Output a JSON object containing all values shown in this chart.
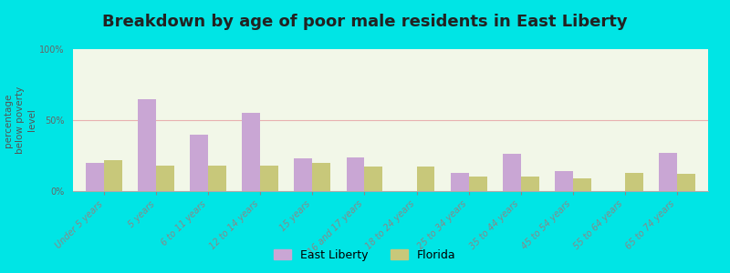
{
  "title": "Breakdown by age of poor male residents in East Liberty",
  "ylabel": "percentage\nbelow poverty\nlevel",
  "categories": [
    "Under 5 years",
    "5 years",
    "6 to 11 years",
    "12 to 14 years",
    "15 years",
    "16 and 17 years",
    "18 to 24 years",
    "25 to 34 years",
    "35 to 44 years",
    "45 to 54 years",
    "55 to 64 years",
    "65 to 74 years"
  ],
  "east_liberty": [
    20,
    65,
    40,
    55,
    23,
    24,
    0,
    13,
    26,
    14,
    0,
    27
  ],
  "florida": [
    22,
    18,
    18,
    18,
    20,
    17,
    17,
    10,
    10,
    9,
    13,
    12
  ],
  "el_color": "#c9a6d4",
  "fl_color": "#c8c87a",
  "bg_outer": "#00e5e5",
  "bg_plot": "#f2f7e8",
  "ylim": [
    0,
    100
  ],
  "yticks": [
    0,
    50,
    100
  ],
  "ytick_labels": [
    "0%",
    "50%",
    "100%"
  ],
  "bar_width": 0.35,
  "legend_el": "East Liberty",
  "legend_fl": "Florida",
  "title_fontsize": 13,
  "axis_label_fontsize": 7.5,
  "tick_fontsize": 7,
  "legend_fontsize": 9
}
